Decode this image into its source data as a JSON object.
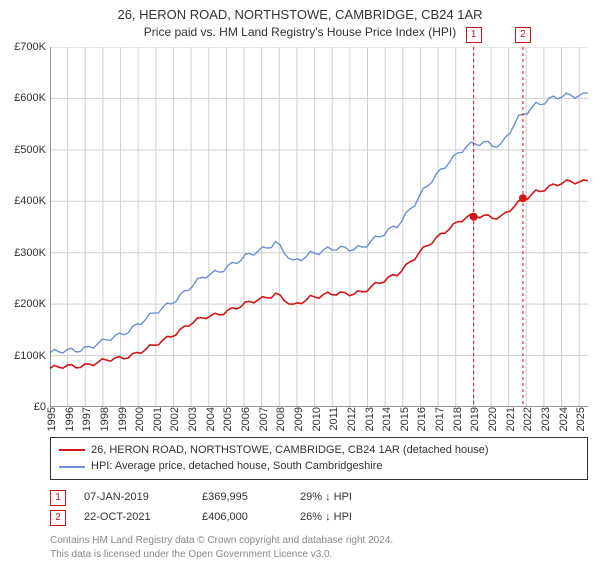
{
  "title": {
    "line1": "26, HERON ROAD, NORTHSTOWE, CAMBRIDGE, CB24 1AR",
    "line2": "Price paid vs. HM Land Registry's House Price Index (HPI)"
  },
  "chart": {
    "type": "line",
    "background_color": "#ffffff",
    "grid_color": "#cfcfcf",
    "axis_color": "#333333",
    "ylim": [
      0,
      700000
    ],
    "ytick_step": 100000,
    "ytick_labels": [
      "£0",
      "£100K",
      "£200K",
      "£300K",
      "£400K",
      "£500K",
      "£600K",
      "£700K"
    ],
    "xlim": [
      1995,
      2025.5
    ],
    "xtick_step": 1,
    "xtick_labels": [
      "1995",
      "1996",
      "1997",
      "1998",
      "1999",
      "2000",
      "2001",
      "2002",
      "2003",
      "2004",
      "2005",
      "2006",
      "2007",
      "2008",
      "2009",
      "2010",
      "2011",
      "2012",
      "2013",
      "2014",
      "2015",
      "2016",
      "2017",
      "2018",
      "2019",
      "2020",
      "2021",
      "2022",
      "2023",
      "2024",
      "2025"
    ],
    "series": [
      {
        "name": "price_paid",
        "color": "#d01515",
        "width": 1.6,
        "y": [
          75000,
          78000,
          82000,
          88000,
          95000,
          105000,
          118000,
          140000,
          160000,
          175000,
          185000,
          195000,
          210000,
          220000,
          195000,
          215000,
          218000,
          220000,
          225000,
          240000,
          260000,
          290000,
          320000,
          350000,
          368000,
          372000,
          370000,
          395000,
          420000,
          430000,
          438000,
          440000
        ]
      },
      {
        "name": "hpi",
        "color": "#6b8fd4",
        "width": 1.4,
        "y": [
          105000,
          108000,
          115000,
          125000,
          140000,
          160000,
          180000,
          205000,
          230000,
          255000,
          270000,
          285000,
          305000,
          320000,
          280000,
          300000,
          305000,
          308000,
          312000,
          330000,
          355000,
          395000,
          440000,
          480000,
          505000,
          515000,
          510000,
          560000,
          590000,
          600000,
          605000,
          610000
        ]
      }
    ],
    "sale_markers": [
      {
        "idx": "1",
        "x": 2019.02,
        "y": 369995
      },
      {
        "idx": "2",
        "x": 2021.81,
        "y": 406000
      }
    ],
    "marker_fill": "#d01515",
    "marker_radius": 4,
    "marker_line_color": "#d01515",
    "marker_line_dash": "3,3",
    "title_fontsize": 13,
    "subtitle_fontsize": 12,
    "tick_fontsize": 11
  },
  "legend": {
    "items": [
      {
        "color": "#d01515",
        "label": "26, HERON ROAD, NORTHSTOWE, CAMBRIDGE, CB24 1AR (detached house)"
      },
      {
        "color": "#6b8fd4",
        "label": "HPI: Average price, detached house, South Cambridgeshire"
      }
    ]
  },
  "sales": [
    {
      "idx": "1",
      "date": "07-JAN-2019",
      "price": "£369,995",
      "diff": "29% ↓ HPI"
    },
    {
      "idx": "2",
      "date": "22-OCT-2021",
      "price": "£406,000",
      "diff": "26% ↓ HPI"
    }
  ],
  "footer": {
    "line1": "Contains HM Land Registry data © Crown copyright and database right 2024.",
    "line2": "This data is licensed under the Open Government Licence v3.0."
  }
}
